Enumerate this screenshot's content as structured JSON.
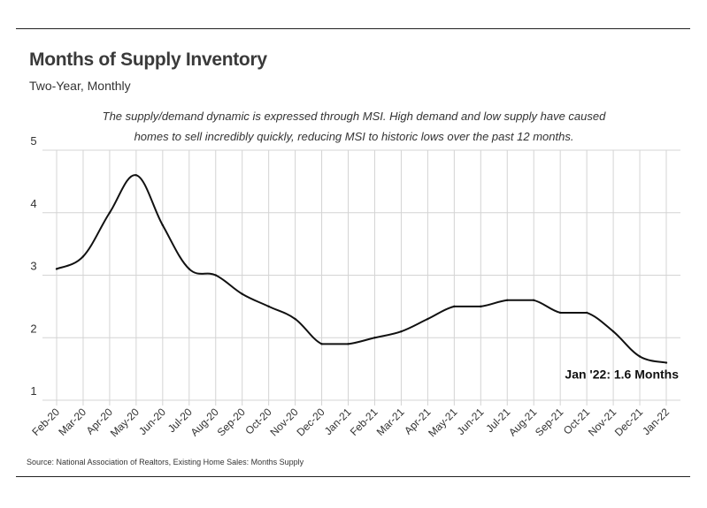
{
  "header": {
    "title": "Months of Supply Inventory",
    "subtitle": "Two-Year, Monthly",
    "annotation": "The supply/demand dynamic is expressed through MSI. High demand and low supply have caused homes to sell incredibly quickly, reducing MSI to historic lows over the past 12 months."
  },
  "footer": {
    "source": "Source:  National Association of Realtors, Existing Home Sales: Months Supply"
  },
  "chart_data": {
    "type": "line",
    "categories": [
      "Feb-20",
      "Mar-20",
      "Apr-20",
      "May-20",
      "Jun-20",
      "Jul-20",
      "Aug-20",
      "Sep-20",
      "Oct-20",
      "Nov-20",
      "Dec-20",
      "Jan-21",
      "Feb-21",
      "Mar-21",
      "Apr-21",
      "May-21",
      "Jun-21",
      "Jul-21",
      "Aug-21",
      "Sep-21",
      "Oct-21",
      "Nov-21",
      "Dec-21",
      "Jan-22"
    ],
    "series": [
      {
        "values": [
          3.1,
          3.3,
          4.0,
          4.6,
          3.8,
          3.1,
          3.0,
          2.7,
          2.5,
          2.3,
          1.9,
          1.9,
          2.0,
          2.1,
          2.3,
          2.5,
          2.5,
          2.6,
          2.6,
          2.4,
          2.4,
          2.1,
          1.7,
          1.6
        ]
      }
    ],
    "ylim": [
      1,
      5
    ],
    "yticks": [
      "1",
      "2",
      "3",
      "4",
      "5"
    ],
    "grid": true,
    "line_color": "#111111",
    "end_label": "Jan '22: 1.6 Months"
  }
}
